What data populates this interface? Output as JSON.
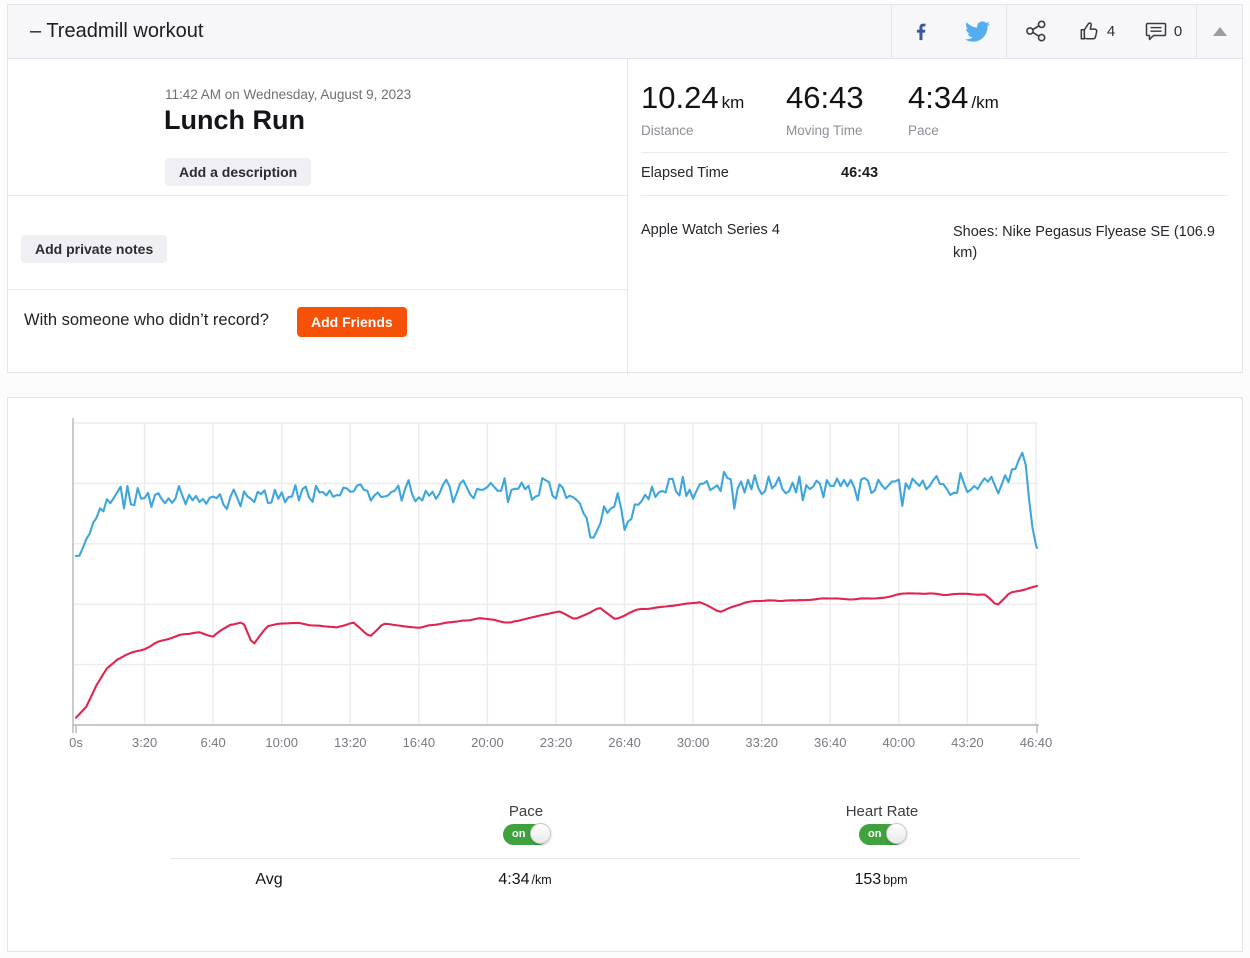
{
  "header": {
    "title": "– Treadmill workout",
    "like_count": "4",
    "comment_count": "0"
  },
  "activity": {
    "datetime": "11:42 AM on Wednesday, August 9, 2023",
    "title": "Lunch Run",
    "add_description_label": "Add a description",
    "add_private_notes_label": "Add private notes",
    "friends_prompt": "With someone who didn’t record?",
    "add_friends_label": "Add Friends"
  },
  "stats": {
    "primary": [
      {
        "value": "10.24",
        "unit": "km",
        "label": "Distance"
      },
      {
        "value": "46:43",
        "unit": "",
        "label": "Moving Time"
      },
      {
        "value": "4:34",
        "unit": "/km",
        "label": "Pace"
      }
    ],
    "elapsed_label": "Elapsed Time",
    "elapsed_value": "46:43",
    "device": "Apple Watch Series 4",
    "shoes": "Shoes: Nike Pegasus Flyease SE (106.9 km)"
  },
  "controls": {
    "pace_label": "Pace",
    "hr_label": "Heart Rate",
    "toggle_on": "on",
    "avg_label": "Avg",
    "avg_pace": "4:34",
    "avg_pace_unit": "/km",
    "avg_hr": "153",
    "avg_hr_unit": "bpm"
  },
  "colors": {
    "accent_orange": "#f65109",
    "toggle_green": "#3fa23f",
    "pace_blue": "#3ea6dc",
    "heart_rate_red": "#e0254e",
    "facebook_blue": "#3b5998",
    "twitter_blue": "#55acee",
    "grid_gray": "#ececef",
    "axis_gray": "#b5b5ba"
  },
  "chart_data": {
    "type": "line",
    "title": "",
    "grid": true,
    "legend_position": "none",
    "duration_s": 2803,
    "sample_step_s": 10,
    "x_ticks": [
      {
        "t": 0,
        "label": "0s"
      },
      {
        "t": 200,
        "label": "3:20"
      },
      {
        "t": 400,
        "label": "6:40"
      },
      {
        "t": 600,
        "label": "10:00"
      },
      {
        "t": 800,
        "label": "13:20"
      },
      {
        "t": 1000,
        "label": "16:40"
      },
      {
        "t": 1200,
        "label": "20:00"
      },
      {
        "t": 1400,
        "label": "23:20"
      },
      {
        "t": 1600,
        "label": "26:40"
      },
      {
        "t": 1800,
        "label": "30:00"
      },
      {
        "t": 2000,
        "label": "33:20"
      },
      {
        "t": 2200,
        "label": "36:40"
      },
      {
        "t": 2400,
        "label": "40:00"
      },
      {
        "t": 2600,
        "label": "43:20"
      },
      {
        "t": 2800,
        "label": "46:40"
      }
    ],
    "series": [
      {
        "name": "Pace",
        "unit": "s/km",
        "avg_display": "4:34 /km",
        "color": "#3ea6dc",
        "inverted": true,
        "ylim": [
          230,
          380
        ],
        "keyframes": [
          [
            0,
            296
          ],
          [
            15,
            295
          ],
          [
            30,
            288
          ],
          [
            50,
            279
          ],
          [
            80,
            272
          ],
          [
            120,
            269
          ],
          [
            200,
            268
          ],
          [
            300,
            267
          ],
          [
            460,
            267
          ],
          [
            620,
            266
          ],
          [
            780,
            265
          ],
          [
            940,
            264
          ],
          [
            1100,
            264
          ],
          [
            1260,
            263
          ],
          [
            1400,
            264
          ],
          [
            1470,
            266
          ],
          [
            1505,
            288
          ],
          [
            1535,
            272
          ],
          [
            1575,
            270
          ],
          [
            1605,
            282
          ],
          [
            1645,
            266
          ],
          [
            1720,
            263
          ],
          [
            1820,
            262
          ],
          [
            1960,
            261
          ],
          [
            2100,
            261
          ],
          [
            2260,
            260
          ],
          [
            2400,
            261
          ],
          [
            2500,
            259
          ],
          [
            2600,
            260
          ],
          [
            2690,
            261
          ],
          [
            2730,
            254
          ],
          [
            2758,
            244
          ],
          [
            2772,
            252
          ],
          [
            2788,
            282
          ],
          [
            2803,
            292
          ]
        ],
        "noise": {
          "amp": 6.5,
          "spike_prob": 0.1,
          "spike_amp": 8,
          "seed": 42,
          "smooth": false
        }
      },
      {
        "name": "Heart Rate",
        "unit": "bpm",
        "avg_display": "153 bpm",
        "color": "#e0254e",
        "inverted": false,
        "ylim": [
          85,
          250
        ],
        "keyframes": [
          [
            0,
            89
          ],
          [
            30,
            95
          ],
          [
            60,
            107
          ],
          [
            90,
            116
          ],
          [
            120,
            121
          ],
          [
            160,
            124
          ],
          [
            216,
            128
          ],
          [
            245,
            131
          ],
          [
            303,
            134
          ],
          [
            362,
            135
          ],
          [
            400,
            133
          ],
          [
            449,
            140
          ],
          [
            487,
            141
          ],
          [
            516,
            128
          ],
          [
            557,
            139
          ],
          [
            653,
            141
          ],
          [
            761,
            138
          ],
          [
            808,
            141
          ],
          [
            857,
            133
          ],
          [
            895,
            140
          ],
          [
            1003,
            138
          ],
          [
            1091,
            141
          ],
          [
            1178,
            143
          ],
          [
            1266,
            141
          ],
          [
            1353,
            145
          ],
          [
            1412,
            147
          ],
          [
            1455,
            143
          ],
          [
            1528,
            149
          ],
          [
            1572,
            143
          ],
          [
            1645,
            148
          ],
          [
            1732,
            150
          ],
          [
            1820,
            152
          ],
          [
            1878,
            147
          ],
          [
            1951,
            152
          ],
          [
            2082,
            153
          ],
          [
            2170,
            154
          ],
          [
            2300,
            154
          ],
          [
            2403,
            156
          ],
          [
            2491,
            157
          ],
          [
            2578,
            156
          ],
          [
            2651,
            156
          ],
          [
            2686,
            150
          ],
          [
            2724,
            157
          ],
          [
            2768,
            159
          ],
          [
            2803,
            161
          ]
        ],
        "noise": {
          "amp": 1.3,
          "spike_prob": 0,
          "spike_amp": 0,
          "seed": 7,
          "smooth": true
        }
      }
    ]
  }
}
